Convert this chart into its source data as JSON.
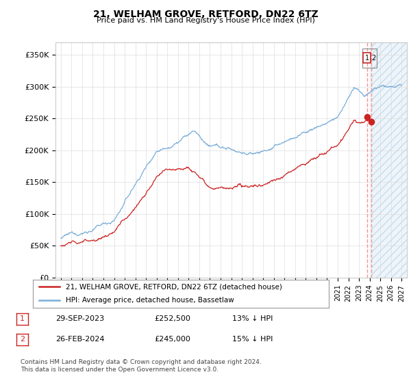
{
  "title": "21, WELHAM GROVE, RETFORD, DN22 6TZ",
  "subtitle": "Price paid vs. HM Land Registry's House Price Index (HPI)",
  "ylabel_ticks": [
    "£0",
    "£50K",
    "£100K",
    "£150K",
    "£200K",
    "£250K",
    "£300K",
    "£350K"
  ],
  "ytick_vals": [
    0,
    50000,
    100000,
    150000,
    200000,
    250000,
    300000,
    350000
  ],
  "ylim": [
    0,
    370000
  ],
  "xlim_start": 1994.5,
  "xlim_end": 2027.5,
  "hpi_color": "#7aadda",
  "price_color": "#cc2222",
  "dashed_line_color": "#ee8888",
  "legend_label1": "21, WELHAM GROVE, RETFORD, DN22 6TZ (detached house)",
  "legend_label2": "HPI: Average price, detached house, Bassetlaw",
  "transaction1_date": "29-SEP-2023",
  "transaction1_price": "£252,500",
  "transaction1_hpi": "13% ↓ HPI",
  "transaction2_date": "26-FEB-2024",
  "transaction2_price": "£245,000",
  "transaction2_hpi": "15% ↓ HPI",
  "footer": "Contains HM Land Registry data © Crown copyright and database right 2024.\nThis data is licensed under the Open Government Licence v3.0.",
  "t1_x": 2023.75,
  "t1_y": 252500,
  "t2_x": 2024.15,
  "t2_y": 245000,
  "hatch_start": 2024.15,
  "background_color": "#ffffff",
  "grid_color": "#dddddd",
  "annotation_box_color": "#cc2222"
}
